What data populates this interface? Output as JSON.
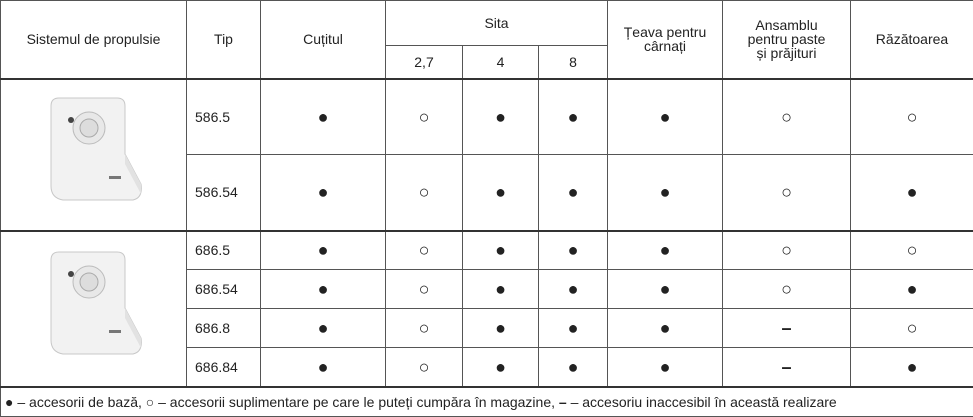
{
  "header": {
    "propulsion": "Sistemul de propulsie",
    "type": "Tip",
    "knife": "Cuțitul",
    "sieve": "Sita",
    "sieve_sizes": [
      "2,7",
      "4",
      "8"
    ],
    "sausage": "Țeava pentru\ncârnați",
    "pasta": "Ansamblu\npentru paste\nși prăjituri",
    "grater": "Răzătoarea"
  },
  "groups": [
    {
      "rows": [
        {
          "type": "586.5",
          "cells": [
            "●",
            "○",
            "●",
            "●",
            "●",
            "○",
            "○"
          ]
        },
        {
          "type": "586.54",
          "cells": [
            "●",
            "○",
            "●",
            "●",
            "●",
            "○",
            "●"
          ]
        }
      ]
    },
    {
      "rows": [
        {
          "type": "686.5",
          "cells": [
            "●",
            "○",
            "●",
            "●",
            "●",
            "○",
            "○"
          ]
        },
        {
          "type": "686.54",
          "cells": [
            "●",
            "○",
            "●",
            "●",
            "●",
            "○",
            "●"
          ]
        },
        {
          "type": "686.8",
          "cells": [
            "●",
            "○",
            "●",
            "●",
            "●",
            "–",
            "○"
          ]
        },
        {
          "type": "686.84",
          "cells": [
            "●",
            "○",
            "●",
            "●",
            "●",
            "–",
            "●"
          ]
        }
      ]
    }
  ],
  "legend": {
    "basic_symbol": "●",
    "basic": " – accesorii de bază, ",
    "extra_symbol": "○",
    "extra": " – accesorii suplimentare pe care le puteți cumpăra în magazine, ",
    "na_symbol": "–",
    "na": " – accesoriu inaccesibil  în această realizare"
  }
}
